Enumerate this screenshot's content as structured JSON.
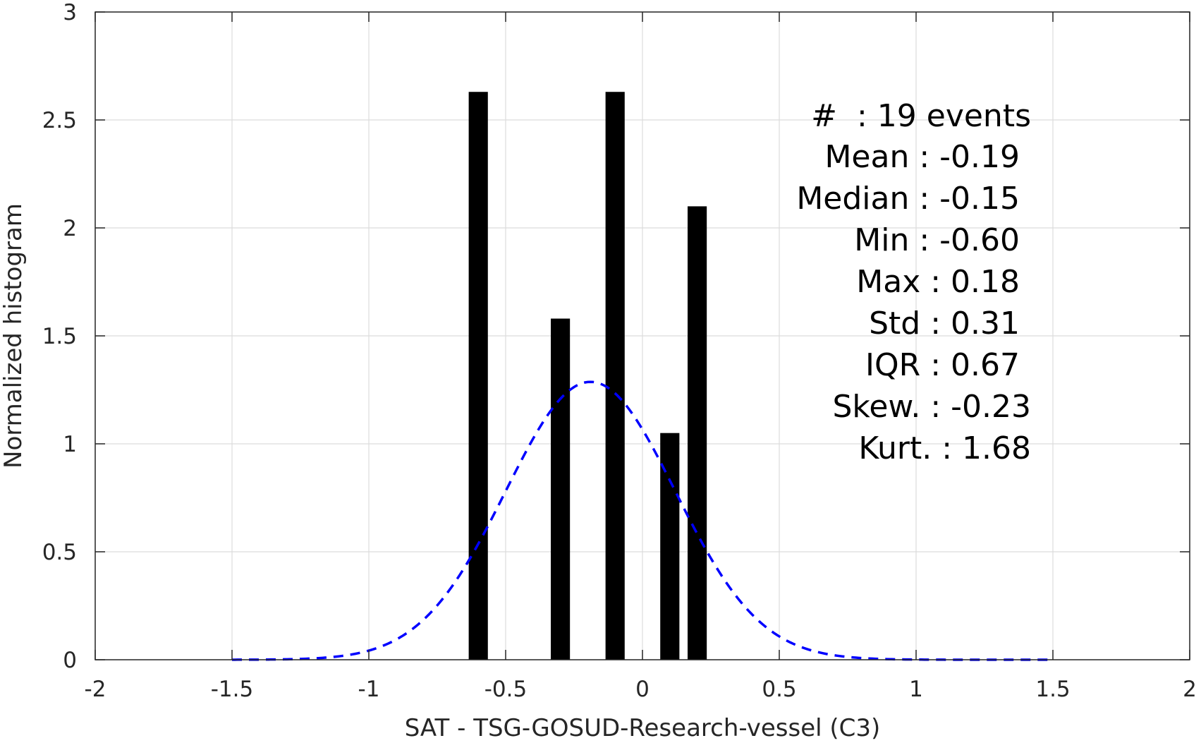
{
  "chart_data": {
    "type": "bar",
    "title": "",
    "xlabel": "SAT - TSG-GOSUD-Research-vessel (C3)",
    "ylabel": "Normalized histogram",
    "xlim": [
      -2,
      2
    ],
    "ylim": [
      0,
      3
    ],
    "grid": true,
    "x_ticks": [
      "-2",
      "-1.5",
      "-1",
      "-0.5",
      "0",
      "0.5",
      "1",
      "1.5",
      "2"
    ],
    "y_ticks": [
      "0",
      "0.5",
      "1",
      "1.5",
      "2",
      "2.5",
      "3"
    ],
    "bars": [
      {
        "x": -0.6,
        "value": 2.63
      },
      {
        "x": -0.3,
        "value": 1.58
      },
      {
        "x": -0.1,
        "value": 2.63
      },
      {
        "x": 0.1,
        "value": 1.05
      },
      {
        "x": 0.2,
        "value": 2.1
      }
    ],
    "bar_width": 0.07,
    "bar_color": "#000000",
    "fit_curve": {
      "style": "dashed",
      "color": "#0000ff",
      "distribution": "normal",
      "mean": -0.19,
      "std": 0.31,
      "x_range": [
        -1.5,
        1.5
      ]
    },
    "stats": [
      "#  : 19 events",
      "Mean : -0.19",
      "Median : -0.15",
      "Min : -0.60",
      "Max : 0.18",
      "Std : 0.31",
      "IQR : 0.67",
      "Skew. : -0.23",
      "Kurt. : 1.68"
    ]
  }
}
